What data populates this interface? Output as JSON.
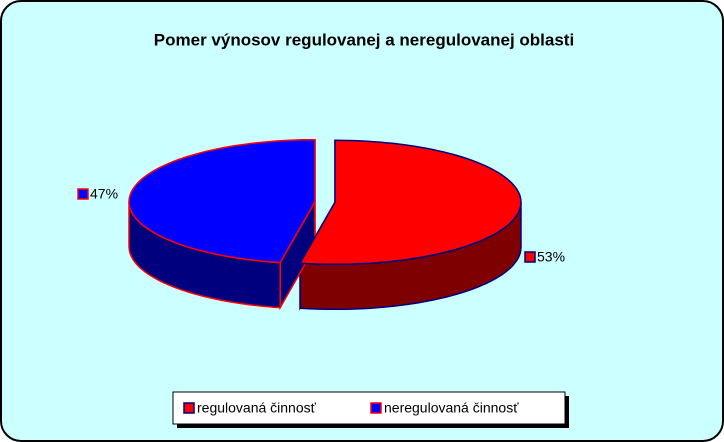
{
  "chart_data": {
    "type": "pie",
    "title": "Pomer výnosov regulovanej a neregulovanej oblasti",
    "categories": [
      "regulovaná činnosť",
      "neregulovaná činnosť"
    ],
    "values": [
      53,
      47
    ],
    "value_labels": [
      "53%",
      "47%"
    ],
    "colors": [
      "#ff0000",
      "#0000ff"
    ],
    "edge_colors": [
      "#000080",
      "#ff0000"
    ],
    "legend": "bottom"
  }
}
